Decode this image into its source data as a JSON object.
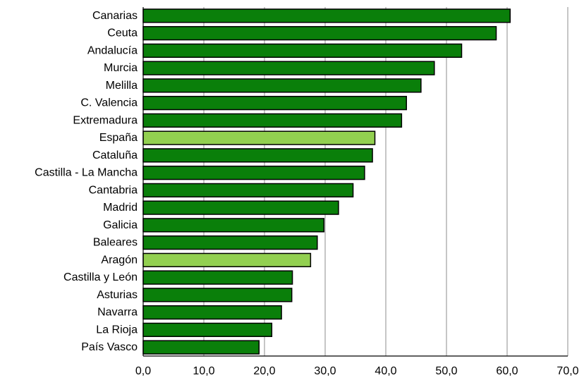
{
  "chart_data": {
    "type": "bar",
    "orientation": "horizontal",
    "categories": [
      "Canarias",
      "Ceuta",
      "Andalucía",
      "Murcia",
      "Melilla",
      "C. Valencia",
      "Extremadura",
      "España",
      "Cataluña",
      "Castilla - La Mancha",
      "Cantabria",
      "Madrid",
      "Galicia",
      "Baleares",
      "Aragón",
      "Castilla y León",
      "Asturias",
      "Navarra",
      "La Rioja",
      "País Vasco"
    ],
    "values": [
      60.5,
      58.2,
      52.5,
      48.0,
      45.8,
      43.4,
      42.6,
      38.2,
      37.8,
      36.5,
      34.6,
      32.2,
      29.8,
      28.7,
      27.6,
      24.6,
      24.5,
      22.8,
      21.2,
      19.1
    ],
    "highlighted": [
      "España",
      "Aragón"
    ],
    "xlim": [
      0,
      70
    ],
    "xticks": [
      0,
      10,
      20,
      30,
      40,
      50,
      60,
      70
    ],
    "xtick_labels": [
      "0,0",
      "10,0",
      "20,0",
      "30,0",
      "40,0",
      "50,0",
      "60,0",
      "70,0"
    ],
    "grid": "vertical",
    "legend": "none",
    "title": "",
    "xlabel": "",
    "ylabel": "",
    "colors": {
      "bar": "#0a7f0a",
      "highlight": "#92d050",
      "grid": "#8c8c8c",
      "outline": "#000000"
    }
  }
}
